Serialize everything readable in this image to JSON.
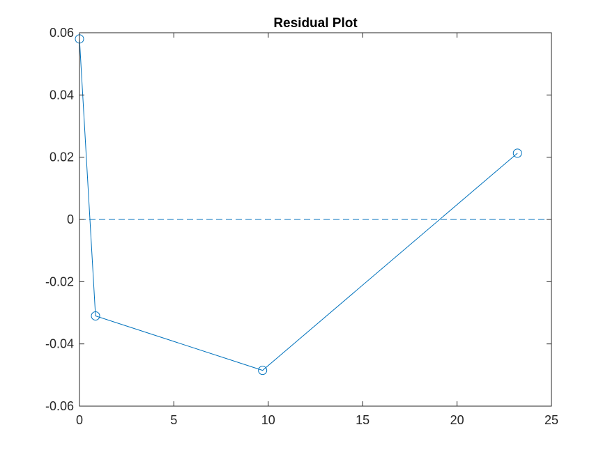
{
  "chart_data": {
    "type": "line",
    "title": "Residual Plot",
    "xlabel": "",
    "ylabel": "",
    "xlim": [
      0,
      25
    ],
    "ylim": [
      -0.06,
      0.06
    ],
    "xticks": [
      0,
      5,
      10,
      15,
      20,
      25
    ],
    "xtick_labels": [
      "0",
      "5",
      "10",
      "15",
      "20",
      "25"
    ],
    "yticks": [
      -0.06,
      -0.04,
      -0.02,
      0,
      0.02,
      0.04,
      0.06
    ],
    "ytick_labels": [
      "-0.06",
      "-0.04",
      "-0.02",
      "0",
      "0.02",
      "0.04",
      "0.06"
    ],
    "grid": false,
    "series": [
      {
        "x": [
          0,
          0.85,
          9.7,
          23.2
        ],
        "y": [
          0.058,
          -0.031,
          -0.0485,
          0.0213
        ],
        "color": "#0072BD",
        "marker": "circle"
      }
    ],
    "reference_lines": [
      {
        "y": 0,
        "style": "dashed",
        "color": "#0072BD"
      }
    ]
  }
}
